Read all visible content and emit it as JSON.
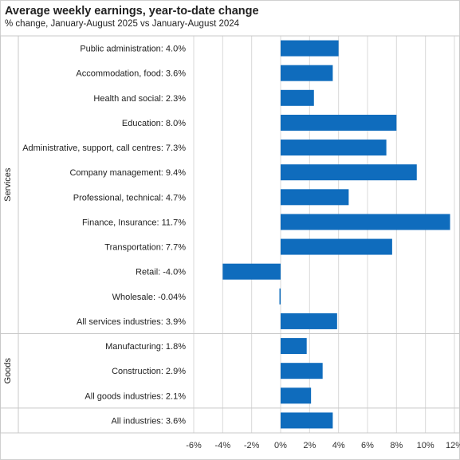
{
  "chart_data": {
    "type": "bar",
    "orientation": "horizontal",
    "title": "Average weekly earnings, year-to-date change",
    "subtitle": "% change, January-August 2025 vs January-August 2024",
    "xlim": [
      -6,
      12
    ],
    "xticks": [
      -6,
      -4,
      -2,
      0,
      2,
      4,
      6,
      8,
      10,
      12
    ],
    "xtick_labels": [
      "-6%",
      "-4%",
      "-2%",
      "0%",
      "2%",
      "4%",
      "6%",
      "8%",
      "10%",
      "12%"
    ],
    "grid": "vertical",
    "bar_color": "#0f6cbd",
    "groups": [
      {
        "label": "Services",
        "start": 0,
        "end": 11
      },
      {
        "label": "Goods",
        "start": 12,
        "end": 14
      },
      {
        "label": "",
        "start": 15,
        "end": 15
      }
    ],
    "categories": [
      {
        "label": "Public administration:  4.0%",
        "value": 4.0
      },
      {
        "label": "Accommodation, food:  3.6%",
        "value": 3.6
      },
      {
        "label": "Health and social:  2.3%",
        "value": 2.3
      },
      {
        "label": "Education:  8.0%",
        "value": 8.0
      },
      {
        "label": "Administrative, support, call centres:  7.3%",
        "value": 7.3
      },
      {
        "label": "Company management:  9.4%",
        "value": 9.4
      },
      {
        "label": "Professional, technical:  4.7%",
        "value": 4.7
      },
      {
        "label": "Finance, Insurance:  11.7%",
        "value": 11.7
      },
      {
        "label": "Transportation:  7.7%",
        "value": 7.7
      },
      {
        "label": "Retail:  -4.0%",
        "value": -4.0
      },
      {
        "label": "Wholesale:  -0.04%",
        "value": -0.04
      },
      {
        "label": "All services industries:  3.9%",
        "value": 3.9
      },
      {
        "label": "Manufacturing:  1.8%",
        "value": 1.8
      },
      {
        "label": "Construction:  2.9%",
        "value": 2.9
      },
      {
        "label": "All goods industries:  2.1%",
        "value": 2.1
      },
      {
        "label": "All industries:  3.6%",
        "value": 3.6
      }
    ]
  }
}
